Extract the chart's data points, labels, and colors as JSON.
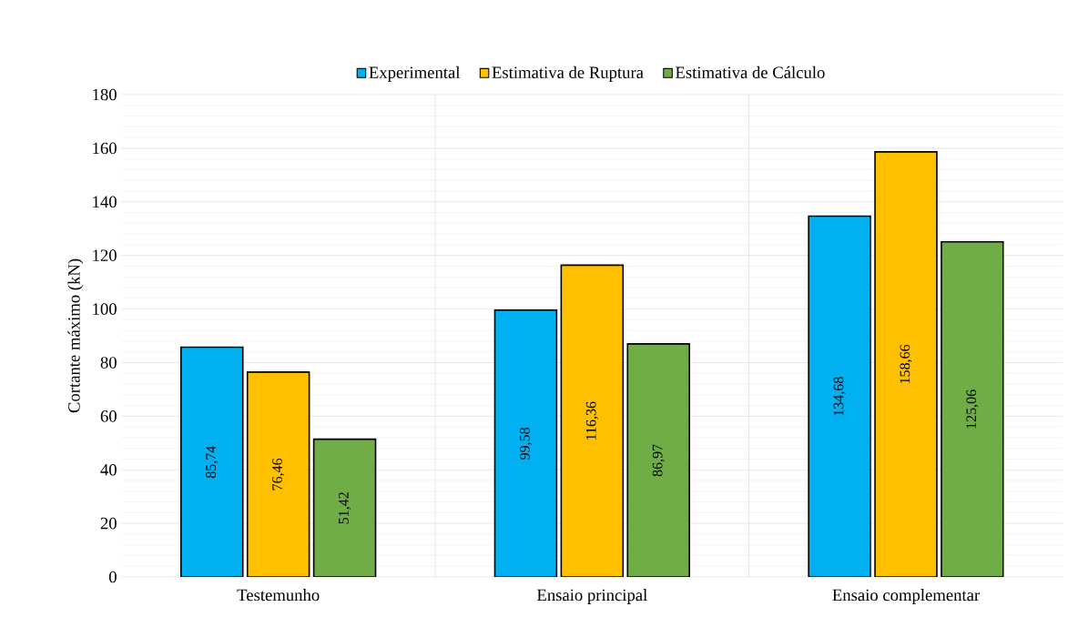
{
  "chart_data": {
    "type": "bar",
    "ylabel": "Cortante máximo (kN)",
    "categories": [
      "Testemunho",
      "Ensaio principal",
      "Ensaio complementar"
    ],
    "series": [
      {
        "name": "Experimental",
        "color": "#00b0f0",
        "values": [
          85.74,
          99.58,
          134.68
        ],
        "value_labels": [
          "85,74",
          "99,58",
          "134,68"
        ]
      },
      {
        "name": "Estimativa de Ruptura",
        "color": "#ffc000",
        "values": [
          76.46,
          116.36,
          158.66
        ],
        "value_labels": [
          "76,46",
          "116,36",
          "158,66"
        ]
      },
      {
        "name": "Estimativa de Cálculo",
        "color": "#70ad47",
        "values": [
          51.42,
          86.97,
          125.06
        ],
        "value_labels": [
          "51,42",
          "86,97",
          "125,06"
        ]
      }
    ],
    "ylim": [
      0,
      180
    ],
    "yticks": [
      0,
      20,
      40,
      60,
      80,
      100,
      120,
      140,
      160,
      180
    ],
    "grid": true,
    "legend": "top"
  }
}
